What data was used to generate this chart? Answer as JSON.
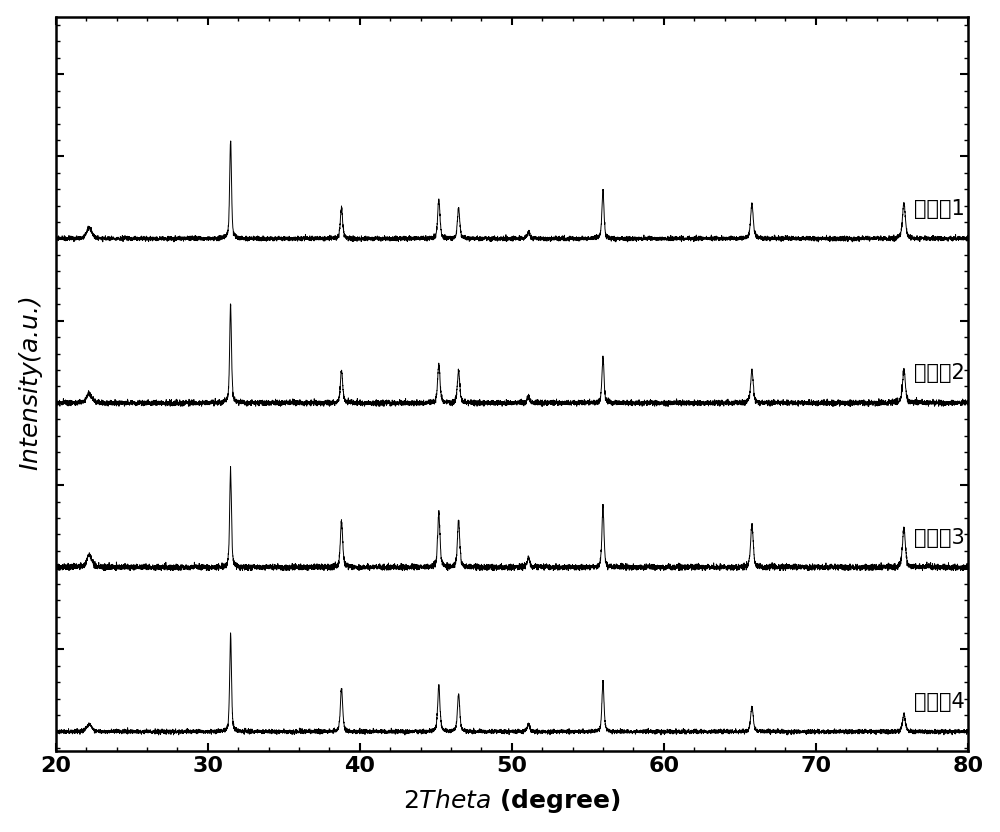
{
  "xlim": [
    20,
    80
  ],
  "ylabel": "Intensity(a.u.)",
  "labels": [
    "实施入1",
    "实施入2",
    "实施入3",
    "实施入4"
  ],
  "offsets": [
    3.0,
    2.0,
    1.0,
    0.0
  ],
  "peak_positions": [
    22.2,
    31.5,
    38.8,
    45.2,
    46.5,
    51.1,
    56.0,
    65.8,
    75.8
  ],
  "peak_heights_1": [
    0.08,
    0.72,
    0.22,
    0.28,
    0.22,
    0.05,
    0.36,
    0.26,
    0.26
  ],
  "peak_heights_2": [
    0.06,
    0.6,
    0.2,
    0.24,
    0.2,
    0.04,
    0.28,
    0.2,
    0.2
  ],
  "peak_heights_3": [
    0.07,
    0.55,
    0.26,
    0.3,
    0.26,
    0.05,
    0.34,
    0.24,
    0.22
  ],
  "peak_heights_4": [
    0.06,
    0.78,
    0.34,
    0.36,
    0.3,
    0.06,
    0.4,
    0.2,
    0.14
  ],
  "peak_widths": [
    0.4,
    0.14,
    0.18,
    0.18,
    0.18,
    0.2,
    0.16,
    0.2,
    0.22
  ],
  "noise_level": 0.008,
  "background_color": "#ffffff",
  "line_color": "#000000",
  "label_fontsize": 15,
  "tick_fontsize": 16,
  "axis_label_fontsize": 18
}
